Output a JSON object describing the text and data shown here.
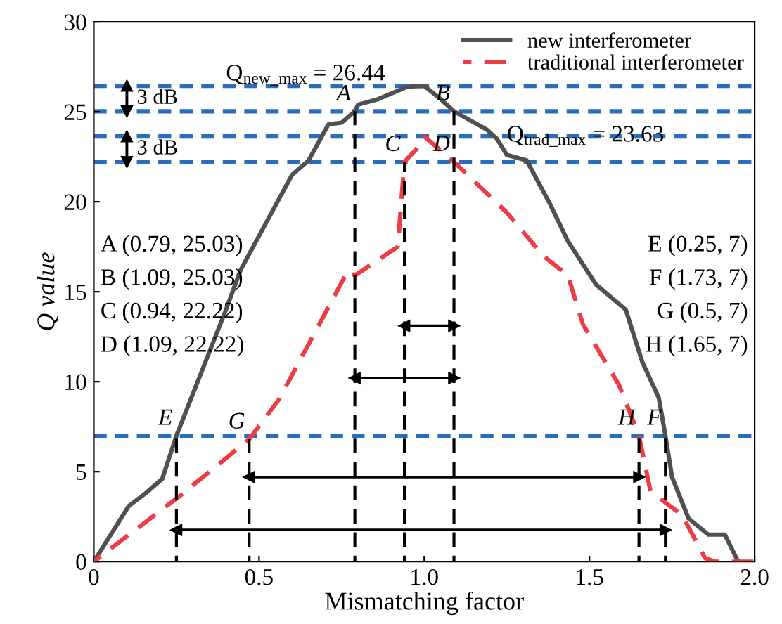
{
  "chart_data": {
    "type": "line",
    "xlabel": "Mismatching factor",
    "ylabel": "Q value",
    "xlim": [
      0,
      2.0
    ],
    "ylim": [
      0,
      30
    ],
    "xticks": [
      0,
      0.5,
      {
        "value": 1.0,
        "label": "1.0"
      },
      1.5,
      {
        "value": 2.0,
        "label": "2.0"
      }
    ],
    "yticks": [
      0,
      5,
      10,
      15,
      20,
      25,
      30
    ],
    "grid": false,
    "legend": "top right",
    "series": [
      {
        "name": "new interferometer",
        "color": "#505050",
        "line_style": "solid",
        "x": [
          0,
          0.106,
          0.157,
          0.207,
          0.25,
          0.4,
          0.444,
          0.6,
          0.65,
          0.71,
          0.75,
          0.79,
          0.8,
          0.86,
          0.95,
          1.0,
          1.05,
          1.09,
          1.19,
          1.22,
          1.25,
          1.31,
          1.38,
          1.435,
          1.52,
          1.61,
          1.66,
          1.71,
          1.73,
          1.75,
          1.8,
          1.86,
          1.91,
          1.95
        ],
        "values": [
          0,
          3.1,
          3.8,
          4.6,
          7,
          14,
          16.2,
          21.5,
          22.3,
          24.3,
          24.4,
          25.03,
          25.4,
          25.7,
          26.4,
          26.44,
          25.7,
          25.03,
          24.0,
          23.5,
          22.6,
          22.3,
          19.9,
          17.8,
          15.4,
          14.0,
          11.1,
          9.1,
          7,
          4.7,
          2.4,
          1.5,
          1.5,
          0
        ]
      },
      {
        "name": "traditional interferometer",
        "color": "#ee3c45",
        "line_style": "dashed",
        "x": [
          0,
          0.085,
          0.257,
          0.47,
          0.56,
          0.77,
          0.79,
          0.92,
          0.94,
          0.975,
          1.0,
          1.09,
          1.25,
          1.36,
          1.435,
          1.48,
          1.59,
          1.65,
          1.685,
          1.78,
          1.85,
          1.88,
          2.0
        ],
        "values": [
          0,
          1.2,
          3.6,
          6.8,
          9,
          16.2,
          15.9,
          17.5,
          22.22,
          22.9,
          23.63,
          22.22,
          19.4,
          17.0,
          15.9,
          13.2,
          9.8,
          7,
          3.9,
          2.6,
          0.2,
          0,
          0
        ]
      },
      {
        "color": "#000000",
        "line_style": "dashed",
        "x": [
          0.79,
          0.79
        ],
        "values": [
          0,
          25.03
        ]
      },
      {
        "color": "#000000",
        "line_style": "dashed",
        "x": [
          1.09,
          1.09
        ],
        "values": [
          0,
          25.03
        ]
      },
      {
        "color": "#000000",
        "line_style": "dashed",
        "x": [
          0.94,
          0.94
        ],
        "values": [
          0,
          22.22
        ]
      },
      {
        "color": "#000000",
        "line_style": "dashed",
        "x": [
          0.25,
          0.25
        ],
        "values": [
          0,
          7
        ]
      },
      {
        "color": "#000000",
        "line_style": "dashed",
        "x": [
          1.73,
          1.73
        ],
        "values": [
          0,
          7
        ]
      },
      {
        "color": "#000000",
        "line_style": "dashed",
        "x": [
          0.47,
          0.47
        ],
        "values": [
          0,
          6.8
        ]
      },
      {
        "color": "#000000",
        "line_style": "dashed",
        "x": [
          1.65,
          1.65
        ],
        "values": [
          0,
          7
        ]
      },
      {
        "color": "#000000",
        "line_style": "solid",
        "marker": "triangle",
        "x": [
          0.25,
          1.73
        ],
        "values": [
          1.76,
          1.76
        ]
      },
      {
        "color": "#000000",
        "line_style": "solid",
        "marker": "triangle",
        "x": [
          0.47,
          1.65
        ],
        "values": [
          4.7,
          4.7
        ]
      },
      {
        "color": "#000000",
        "line_style": "solid",
        "marker": "triangle",
        "x": [
          0.79,
          1.09
        ],
        "values": [
          10.2,
          10.2
        ]
      },
      {
        "color": "#000000",
        "line_style": "solid",
        "marker": "triangle",
        "x": [
          0.94,
          1.09
        ],
        "values": [
          13.1,
          13.1
        ]
      },
      {
        "color": "#000000",
        "line_style": "solid",
        "marker": "triangle",
        "x": [
          0.1,
          0.1
        ],
        "values": [
          26.44,
          25.03
        ]
      },
      {
        "color": "#000000",
        "line_style": "solid",
        "marker": "triangle",
        "x": [
          0.1,
          0.1
        ],
        "values": [
          23.63,
          22.22
        ]
      }
    ],
    "ref_lines": [
      {
        "axis": "y",
        "value": 26.44,
        "color": "#2a6ebb",
        "line_style": "dashed"
      },
      {
        "axis": "y",
        "value": 25.03,
        "color": "#2a6ebb",
        "line_style": "dashed"
      },
      {
        "axis": "y",
        "value": 23.63,
        "color": "#2a6ebb",
        "line_style": "dashed"
      },
      {
        "axis": "y",
        "value": 22.22,
        "color": "#2a6ebb",
        "line_style": "dashed"
      },
      {
        "axis": "y",
        "value": 7,
        "color": "#2a6ebb",
        "line_style": "dashed"
      }
    ],
    "annotations": [
      "3 dB",
      "3 dB",
      {
        "text": "Q$_{new_max}$ = 26.44",
        "x": 0.4,
        "y": 26.44
      },
      {
        "text": "Q$_{trad_max}$ = 23.63",
        "x": 1.25,
        "y": 23.63
      },
      {
        "text": "A",
        "x": 0.79,
        "y": 25.03
      },
      {
        "text": "B",
        "x": 1.09,
        "y": 25.03
      },
      {
        "text": "C",
        "x": 0.94,
        "y": 22.22
      },
      {
        "text": "D",
        "x": 1.09,
        "y": 22.22
      },
      {
        "text": "E",
        "x": 0.25,
        "y": 7
      },
      {
        "text": "F",
        "x": 1.73,
        "y": 7
      },
      {
        "text": "G",
        "x": 0.47,
        "y": 6.8
      },
      {
        "text": "H",
        "x": 1.65,
        "y": 7
      },
      "A (0.79, 25.03)",
      "B (1.09, 25.03)",
      "C (0.94, 22.22)",
      "D (1.09, 22.22)",
      "E (0.25, 7)",
      "F (1.73, 7)",
      "G (0.5, 7)",
      "H (1.65, 7)"
    ]
  }
}
